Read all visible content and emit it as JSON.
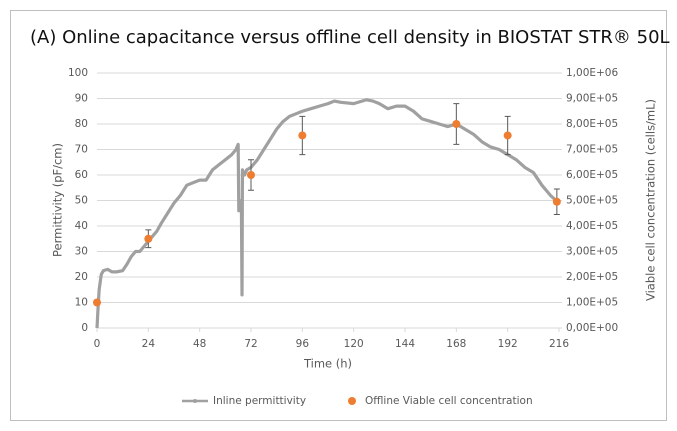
{
  "chart_data": {
    "type": "line",
    "title": "(A) Online capacitance versus offline cell density in BIOSTAT STR® 50L",
    "x_label": "Time (h)",
    "y_label": "Permittivity (pF/cm)",
    "y2_label": "Viable cell concentration (cells/mL)",
    "xlim": [
      0,
      216
    ],
    "xticks": [
      0,
      24,
      48,
      72,
      96,
      120,
      144,
      168,
      192,
      216
    ],
    "ylim": [
      0,
      100
    ],
    "yticks": [
      0,
      10,
      20,
      30,
      40,
      50,
      60,
      70,
      80,
      90,
      100
    ],
    "y2lim": [
      0,
      1000000
    ],
    "y2ticks": [
      {
        "value": 0,
        "label": "0,00E+00"
      },
      {
        "value": 100000,
        "label": "1,00E+05"
      },
      {
        "value": 200000,
        "label": "2,00E+05"
      },
      {
        "value": 300000,
        "label": "3,00E+05"
      },
      {
        "value": 400000,
        "label": "4,00E+05"
      },
      {
        "value": 500000,
        "label": "5,00E+05"
      },
      {
        "value": 600000,
        "label": "6,00E+05"
      },
      {
        "value": 700000,
        "label": "7,00E+05"
      },
      {
        "value": 800000,
        "label": "8,00E+05"
      },
      {
        "value": 900000,
        "label": "9,00E+05"
      },
      {
        "value": 1000000,
        "label": "1,00E+06"
      }
    ],
    "grid": true,
    "legend": "bottom",
    "series": [
      {
        "name": "Inline permittivity",
        "color": "#a0a0a0",
        "x": [
          0,
          0.5,
          1,
          2,
          3,
          5,
          7,
          9,
          12,
          14,
          16,
          18,
          20,
          22,
          24,
          26,
          28,
          30,
          33,
          36,
          39,
          42,
          45,
          48,
          51,
          54,
          57,
          60,
          63,
          65,
          66,
          66.3,
          67,
          67.5,
          67.8,
          68,
          69,
          70,
          72,
          75,
          78,
          81,
          84,
          87,
          90,
          93,
          96,
          100,
          104,
          108,
          111,
          114,
          120,
          126,
          129,
          132,
          136,
          140,
          144,
          148,
          152,
          156,
          160,
          164,
          168,
          172,
          176,
          180,
          184,
          188,
          192,
          196,
          200,
          204,
          208,
          212,
          216
        ],
        "values": [
          0,
          8,
          15,
          21,
          22.5,
          23,
          22,
          22,
          22.5,
          25,
          28,
          30,
          30,
          32,
          34,
          36,
          38,
          41,
          45,
          49,
          52,
          56,
          57,
          58,
          58,
          62,
          64,
          66,
          68,
          70,
          72,
          46,
          46,
          50,
          13,
          62,
          60,
          62,
          63,
          66,
          70,
          74,
          78,
          81,
          83,
          84,
          85,
          86,
          87,
          88,
          89,
          88.5,
          88,
          89.5,
          89,
          88,
          86,
          87,
          87,
          85,
          82,
          81,
          80,
          79,
          80,
          78,
          76,
          73,
          71,
          70,
          68,
          66,
          63,
          61,
          56,
          52,
          49
        ]
      },
      {
        "name": "Offline Viable cell concentration",
        "color": "#ed7d31",
        "axis": "y2",
        "x": [
          0,
          24,
          72,
          96,
          168,
          192,
          215
        ],
        "values": [
          100000,
          350000,
          600000,
          755000,
          800000,
          755000,
          495000
        ],
        "errors": [
          0,
          35000,
          60000,
          75000,
          80000,
          75000,
          50000
        ]
      }
    ]
  }
}
